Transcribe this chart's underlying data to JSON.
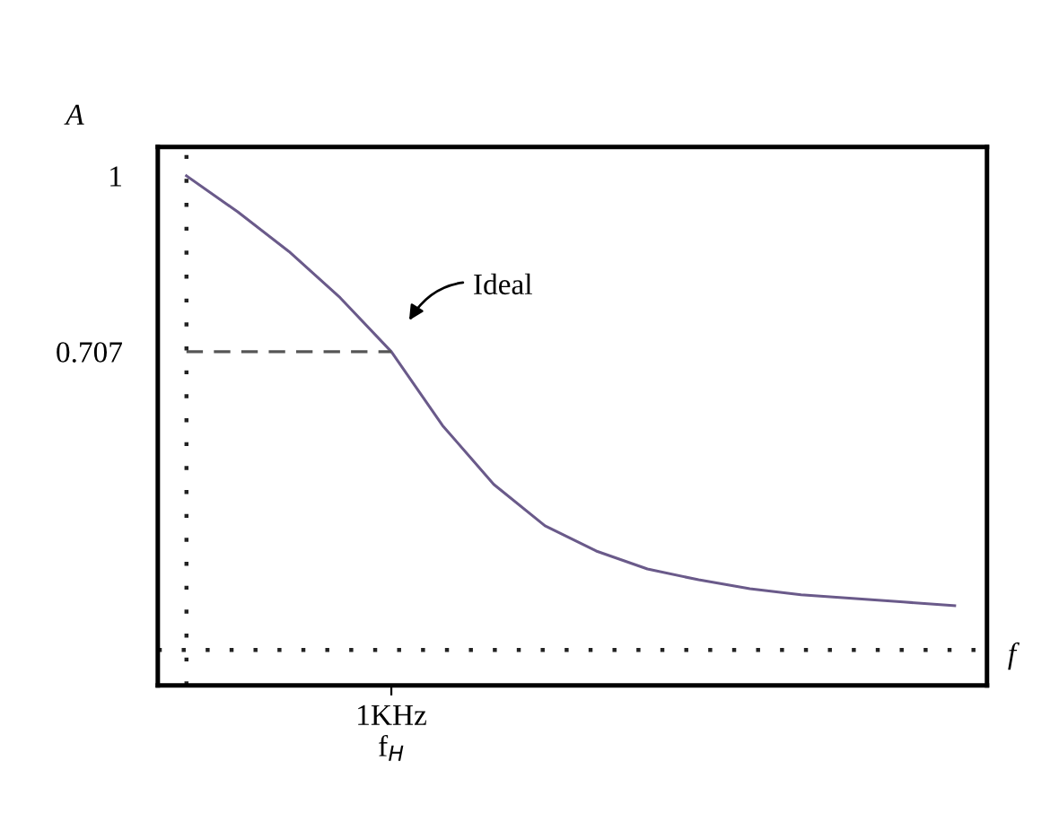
{
  "chart_data": {
    "type": "line",
    "xlabel": "f",
    "ylabel": "A",
    "categories": [
      null,
      null,
      null,
      null,
      "1KHz\nf$_{H}$",
      null,
      null,
      null,
      null,
      null,
      null,
      null,
      null,
      null,
      null,
      null
    ],
    "series": [
      {
        "color": "#6a5a8a",
        "values": [
          1.0,
          0.94,
          0.874,
          0.797,
          0.707,
          0.584,
          0.486,
          0.417,
          0.375,
          0.345,
          0.327,
          0.312,
          0.302,
          0.296,
          0.29,
          0.284
        ]
      },
      {
        "color": "#555555",
        "line_style": "dashed",
        "values": [
          0.707,
          0.707,
          0.707,
          0.707,
          0.707,
          null,
          null,
          null,
          null,
          null,
          null,
          null,
          null,
          null,
          null,
          null
        ]
      }
    ],
    "ylim": [
      0.151,
      1.048
    ],
    "yticks": [
      1,
      0.707
    ],
    "ref_lines": [
      {
        "axis": "y",
        "value": 0.21,
        "line_style": "dotted",
        "color": "#222222"
      }
    ],
    "annotations": [
      "Ideal"
    ],
    "grid": false,
    "marker": "none",
    "line_style": "solid"
  }
}
